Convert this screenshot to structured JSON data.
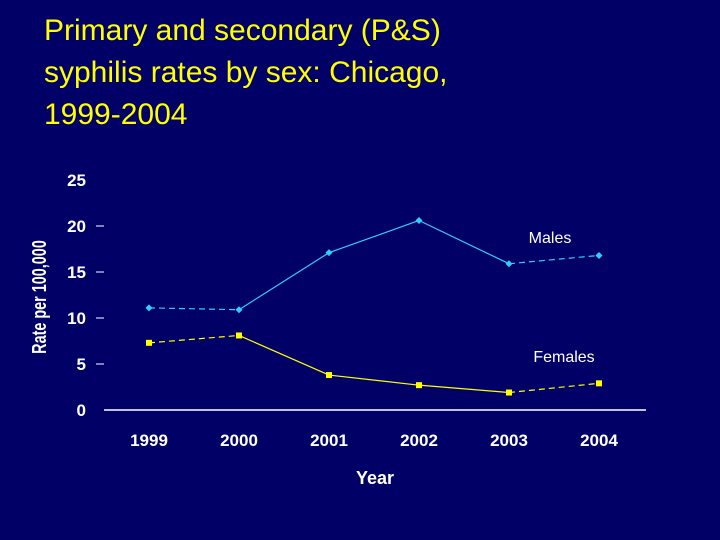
{
  "title_lines": [
    "Primary and secondary (P&S)",
    "syphilis rates by sex: Chicago,",
    "1999-2004"
  ],
  "colors": {
    "background": "#000066",
    "title": "#FFFF00",
    "males": "#33CCFF",
    "females": "#FFFF00",
    "axis": "#FFFFFF"
  },
  "chart_data": {
    "type": "line",
    "title": "Primary and secondary (P&S) syphilis rates by sex: Chicago, 1999-2004",
    "xlabel": "Year",
    "ylabel": "Rate per 100,000",
    "categories": [
      "1999",
      "2000",
      "2001",
      "2002",
      "2003",
      "2004"
    ],
    "ylim": [
      0,
      25
    ],
    "yticks": [
      0,
      5,
      10,
      15,
      20,
      25
    ],
    "grid": false,
    "legend": "inline-labels",
    "series": [
      {
        "name": "Males",
        "values": [
          11.1,
          10.9,
          17.1,
          20.6,
          15.9,
          16.8
        ]
      },
      {
        "name": "Females",
        "values": [
          7.3,
          8.1,
          3.8,
          2.7,
          1.9,
          2.9
        ]
      }
    ]
  }
}
